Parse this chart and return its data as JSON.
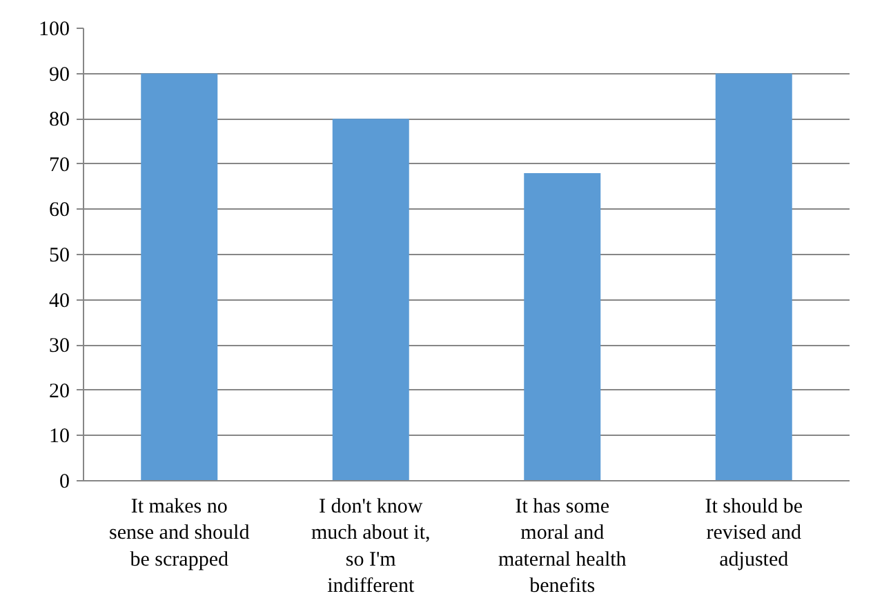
{
  "chart_data": {
    "type": "bar",
    "categories": [
      "It makes no sense and should be scrapped",
      "I don't know much about it, so I'm indifferent",
      "It has some moral and maternal health benefits",
      "It should be revised and adjusted"
    ],
    "values": [
      90,
      80,
      68,
      90
    ],
    "color": "#5b9bd5",
    "ylim": [
      0,
      100
    ],
    "yticks": [
      0,
      10,
      20,
      30,
      40,
      50,
      60,
      70,
      80,
      90,
      100
    ],
    "grid": "y"
  }
}
